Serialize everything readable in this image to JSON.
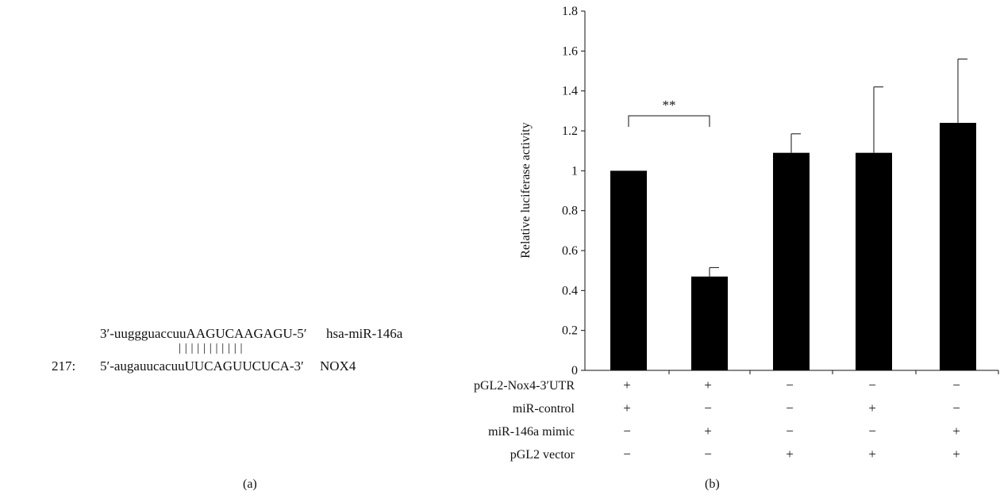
{
  "panel_a": {
    "label": "(a)",
    "mirna": {
      "sequence": "3′-uuggguaccuuAAGUCAAGAGU-5′",
      "name": "hsa-miR-146a"
    },
    "pairing": "| | | | | | | | | | |",
    "target": {
      "position": "217:",
      "sequence": "5′-augauucacuuUUCAGUUCUCA-3′",
      "name": "NOX4"
    }
  },
  "panel_b": {
    "label": "(b)",
    "significance": "**",
    "row_labels": [
      "pGL2-Nox4-3′UTR",
      "miR-control",
      "miR-146a mimic",
      "pGL2 vector"
    ],
    "conditions": [
      [
        "+",
        "+",
        "−",
        "−",
        "−"
      ],
      [
        "+",
        "−",
        "−",
        "+",
        "−"
      ],
      [
        "−",
        "+",
        "−",
        "−",
        "+"
      ],
      [
        "−",
        "−",
        "+",
        "+",
        "+"
      ]
    ]
  },
  "chart_data": {
    "type": "bar",
    "title": "",
    "xlabel": "",
    "ylabel": "Relative luciferase activity",
    "ylim": [
      0,
      1.8
    ],
    "yticks": [
      0,
      0.2,
      0.4,
      0.6,
      0.8,
      1,
      1.2,
      1.4,
      1.6,
      1.8
    ],
    "ytick_labels": [
      "0",
      "0.2",
      "0.4",
      "0.6",
      "0.8",
      "1",
      "1.2",
      "1.4",
      "1.6",
      "1.8"
    ],
    "values": [
      1.0,
      0.47,
      1.09,
      1.09,
      1.24
    ],
    "error_upper": [
      0.002,
      0.045,
      0.095,
      0.33,
      0.32
    ],
    "bar_color": "#000000",
    "significance": {
      "groups": [
        0,
        1
      ],
      "label": "**"
    },
    "grid": false,
    "legend": "none"
  }
}
